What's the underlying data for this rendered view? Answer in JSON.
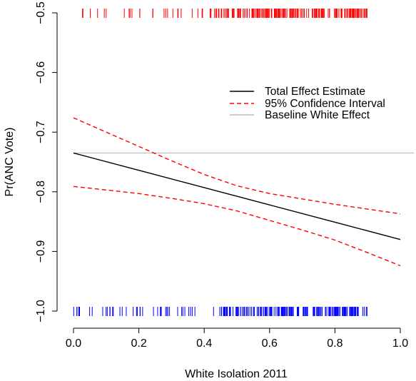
{
  "chart_data": {
    "type": "line",
    "title": "",
    "xlabel": "White Isolation 2011",
    "ylabel": "Pr(ANC Vote)",
    "xlim": [
      0.0,
      1.0
    ],
    "ylim": [
      -1.0,
      -0.5
    ],
    "x_ticks": [
      "0.0",
      "0.2",
      "0.4",
      "0.6",
      "0.8",
      "1.0"
    ],
    "y_ticks": [
      "-1.0",
      "-0.9",
      "-0.8",
      "-0.7",
      "-0.6",
      "-0.5"
    ],
    "legend_position": "top-right",
    "series": [
      {
        "name": "Total Effect Estimate",
        "color": "#000000",
        "style": "solid",
        "x": [
          0.0,
          0.2,
          0.4,
          0.6,
          0.8,
          1.0
        ],
        "y": [
          -0.735,
          -0.764,
          -0.793,
          -0.822,
          -0.851,
          -0.88
        ]
      },
      {
        "name": "95% Confidence Interval",
        "color": "#ff0000",
        "style": "dashed",
        "x": [
          0.0,
          0.1,
          0.2,
          0.3,
          0.4,
          0.5,
          0.6,
          0.7,
          0.8,
          0.9,
          1.0
        ],
        "y_upper": [
          -0.676,
          -0.7,
          -0.724,
          -0.748,
          -0.771,
          -0.79,
          -0.803,
          -0.812,
          -0.821,
          -0.829,
          -0.837
        ],
        "y_lower": [
          -0.791,
          -0.797,
          -0.803,
          -0.811,
          -0.82,
          -0.832,
          -0.848,
          -0.864,
          -0.881,
          -0.902,
          -0.924
        ]
      },
      {
        "name": "Baseline White Effect",
        "color": "#bbbbbb",
        "style": "solid",
        "y": -0.735
      }
    ],
    "rug": {
      "top": {
        "color": "#ff0000",
        "x_range": [
          0.0,
          0.9
        ]
      },
      "bottom": {
        "color": "#0000ff",
        "x_range": [
          0.0,
          0.9
        ]
      }
    }
  }
}
